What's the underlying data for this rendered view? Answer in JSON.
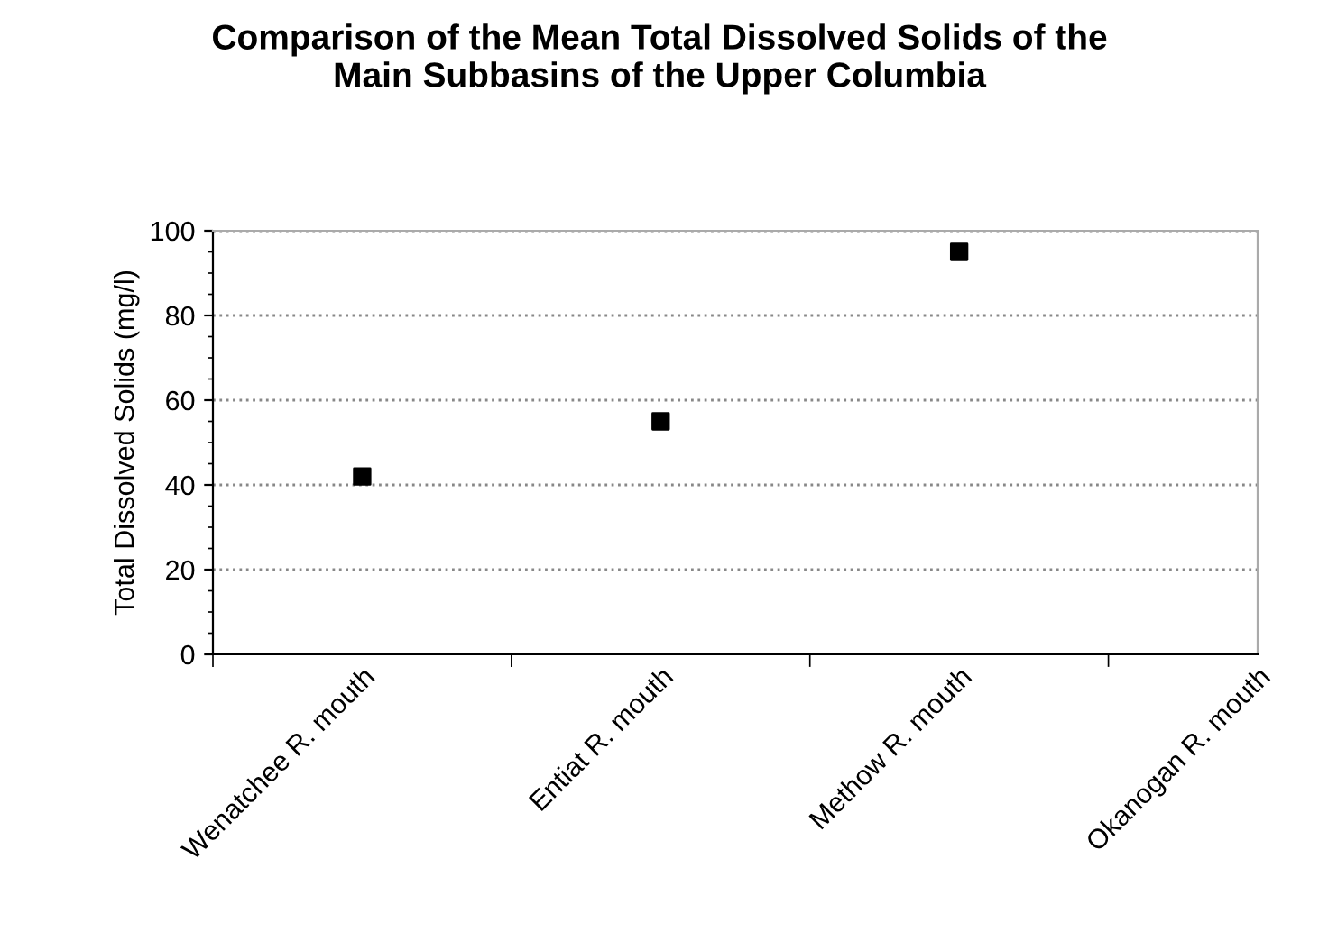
{
  "chart_data": {
    "type": "scatter",
    "title": "Comparison of the Mean Total Dissolved Solids of the\nMain Subbasins of the Upper Columbia",
    "ylabel": "Total Dissolved Solids (mg/l)",
    "categories": [
      "Wenatchee R. mouth",
      "Entiat R. mouth",
      "Methow R. mouth",
      "Okanogan R. mouth"
    ],
    "series": [
      {
        "color": "#000000",
        "values": [
          42,
          55,
          95,
          null
        ]
      }
    ],
    "ylim": [
      0,
      100
    ],
    "yticks": [
      0,
      20,
      40,
      60,
      80,
      100
    ],
    "grid": "y",
    "marker": "square",
    "legend": false
  }
}
